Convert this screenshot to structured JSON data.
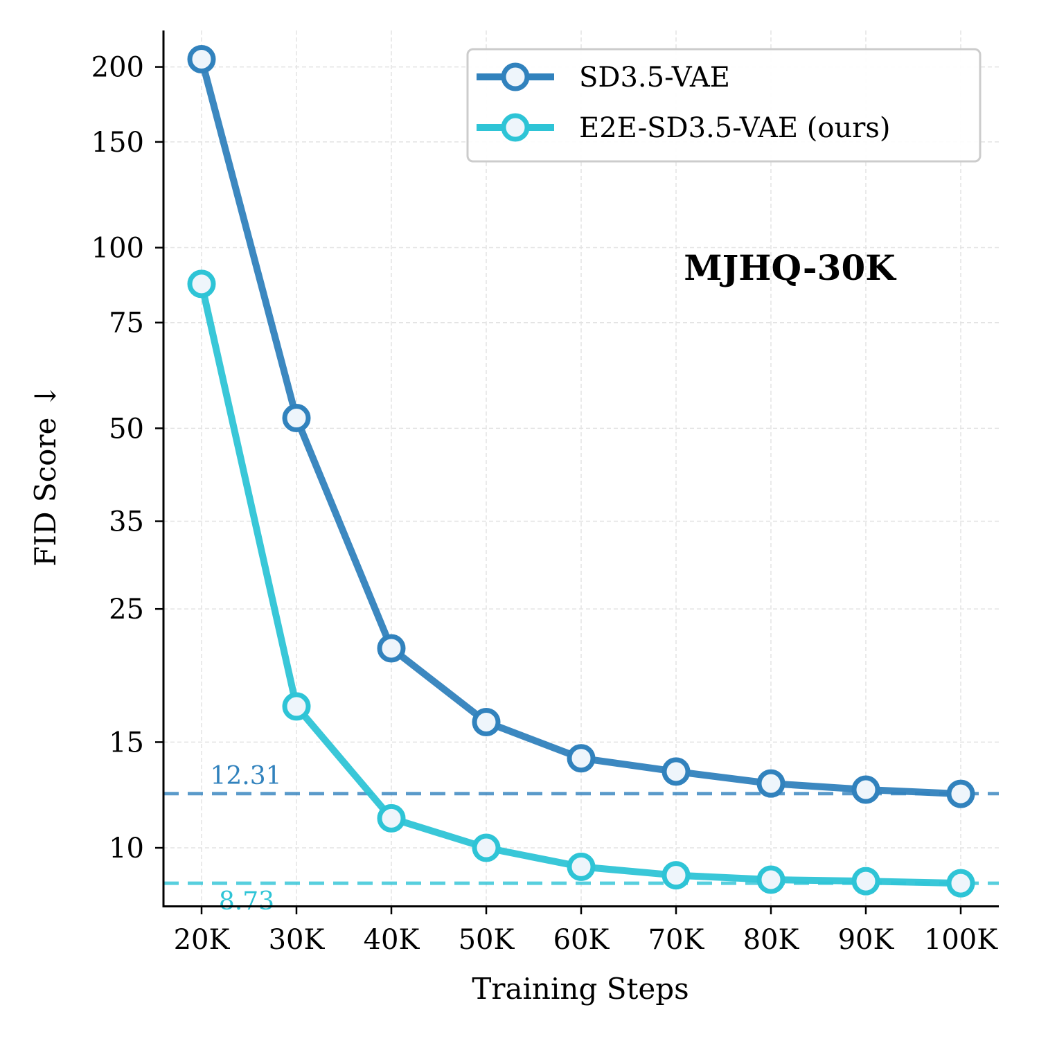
{
  "chart_data": {
    "type": "line",
    "title": "",
    "annotation": "MJHQ-30K",
    "xlabel": "Training Steps",
    "ylabel": "FID Score ↓",
    "x": [
      20,
      30,
      40,
      50,
      60,
      70,
      80,
      90,
      100
    ],
    "x_tick_labels": [
      "20K",
      "30K",
      "40K",
      "50K",
      "60K",
      "70K",
      "80K",
      "90K",
      "100K"
    ],
    "y_ticks": [
      10,
      15,
      25,
      35,
      50,
      75,
      100,
      150,
      200
    ],
    "y_tick_labels": [
      "10",
      "15",
      "25",
      "35",
      "50",
      "75",
      "100",
      "150",
      "200"
    ],
    "y_scale": "log",
    "ylim": [
      8,
      230
    ],
    "grid": true,
    "legend_position": "top-right",
    "series": [
      {
        "name": "SD3.5-VAE",
        "color": "#3182bd",
        "values": [
          206,
          52,
          21.5,
          16.2,
          14.1,
          13.4,
          12.8,
          12.5,
          12.3
        ]
      },
      {
        "name": "E2E-SD3.5-VAE (ours)",
        "color": "#2ec4d6",
        "values": [
          87,
          17.2,
          11.2,
          10,
          9.3,
          9.0,
          8.85,
          8.8,
          8.73
        ]
      }
    ],
    "reference_lines": [
      {
        "value": 12.31,
        "label": "12.31",
        "color": "#3182bd"
      },
      {
        "value": 8.73,
        "label": "8.73",
        "color": "#2ec4d6"
      }
    ]
  }
}
